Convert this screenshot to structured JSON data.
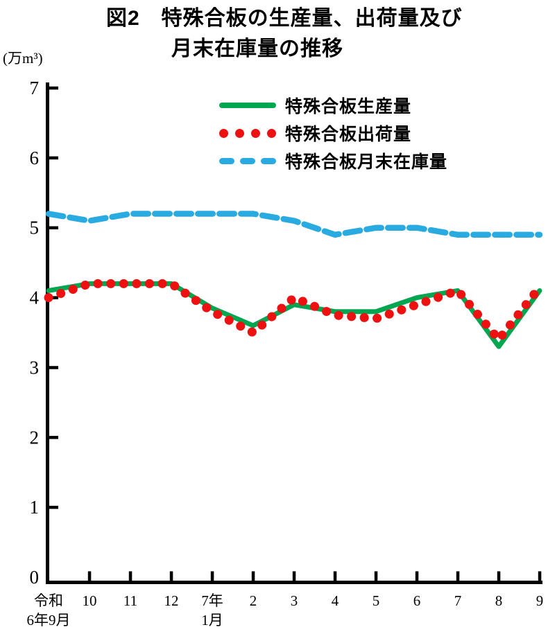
{
  "chart_data": {
    "type": "line",
    "title": "図2 特殊合板の生産量、出荷量及び月末在庫量の推移",
    "title_lines": [
      "図2　特殊合板の生産量、出荷量及び",
      "月末在庫量の推移"
    ],
    "unit_label": "(万m³)",
    "ylim": [
      0,
      7
    ],
    "yticks": [
      0,
      1,
      2,
      3,
      4,
      5,
      6,
      7
    ],
    "grid": false,
    "legend_position": "upper-center-inside",
    "x_labels": [
      [
        "令和",
        "6年9月"
      ],
      [
        "10"
      ],
      [
        "11"
      ],
      [
        "12"
      ],
      [
        "7年",
        "1月"
      ],
      [
        "2"
      ],
      [
        "3"
      ],
      [
        "4"
      ],
      [
        "5"
      ],
      [
        "6"
      ],
      [
        "7"
      ],
      [
        "8"
      ],
      [
        "9"
      ]
    ],
    "series": [
      {
        "name": "特殊合板生産量",
        "line_style": "solid",
        "color": "#00a650",
        "values": [
          4.1,
          4.2,
          4.2,
          4.2,
          3.85,
          3.6,
          3.9,
          3.8,
          3.8,
          4.0,
          4.1,
          3.3,
          4.1
        ]
      },
      {
        "name": "特殊合板出荷量",
        "line_style": "dotted",
        "color": "#ee1111",
        "values": [
          4.0,
          4.2,
          4.2,
          4.2,
          3.8,
          3.5,
          4.0,
          3.75,
          3.7,
          3.9,
          4.1,
          3.4,
          4.15
        ]
      },
      {
        "name": "特殊合板月末在庫量",
        "line_style": "dashed",
        "color": "#29abe2",
        "values": [
          5.2,
          5.1,
          5.2,
          5.2,
          5.2,
          5.2,
          5.1,
          4.9,
          5.0,
          5.0,
          4.9,
          4.9,
          4.9
        ]
      }
    ],
    "axis_color": "#000000"
  }
}
